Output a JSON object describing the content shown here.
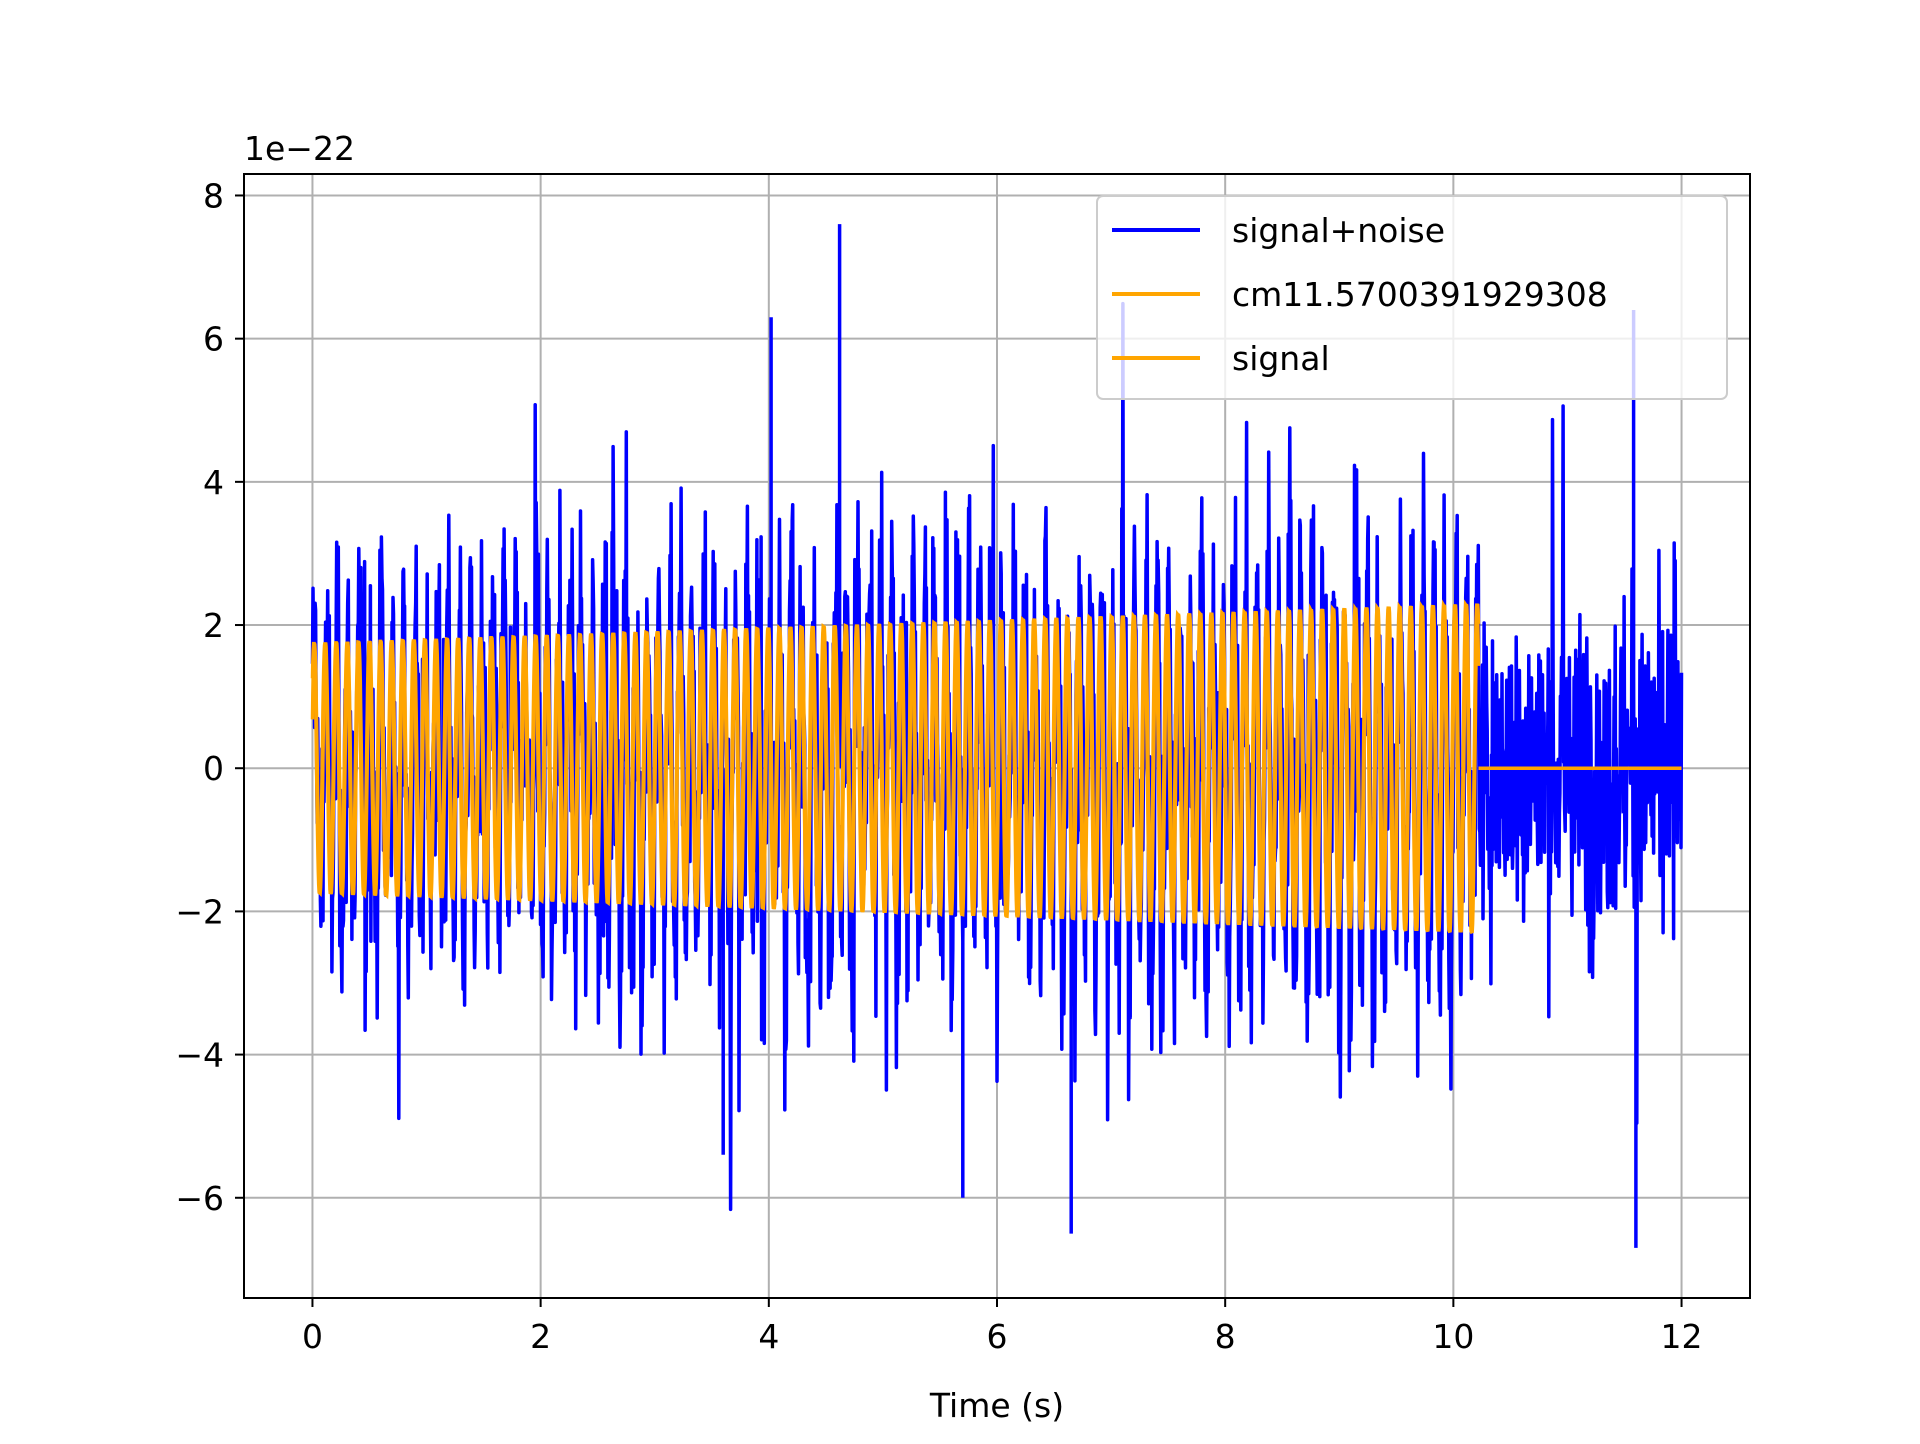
{
  "chart_data": {
    "type": "line",
    "title": "",
    "xlabel": "Time (s)",
    "ylabel": "",
    "y_offset_label": "1e−22",
    "xlim": [
      -0.6,
      12.6
    ],
    "ylim": [
      -7.4,
      8.3
    ],
    "x_ticks": [
      0,
      2,
      4,
      6,
      8,
      10,
      12
    ],
    "x_tick_labels": [
      "0",
      "2",
      "4",
      "6",
      "8",
      "10",
      "12"
    ],
    "y_ticks": [
      -6,
      -4,
      -2,
      0,
      2,
      4,
      6,
      8
    ],
    "y_tick_labels": [
      "−6",
      "−4",
      "−2",
      "0",
      "2",
      "4",
      "6",
      "8"
    ],
    "grid": true,
    "legend_position": "top-right",
    "series": [
      {
        "name": "signal+noise",
        "color": "#0000ff",
        "x_range": [
          0,
          12
        ],
        "peak_max": 7.6,
        "peak_min": -6.7,
        "typical_range": [
          -4,
          4
        ]
      },
      {
        "name": "cm11.5700391929308",
        "color": "#ffa500",
        "x_range": [
          0,
          10.22
        ],
        "amplitude_start": 1.75,
        "amplitude_end": 2.3,
        "zero_after": 10.22,
        "x_end": 12
      },
      {
        "name": "signal",
        "color": "#ffa500",
        "x_range": [
          0,
          10.22
        ],
        "amplitude_start": 1.75,
        "amplitude_end": 2.3,
        "zero_after": 10.22,
        "x_end": 12
      }
    ]
  }
}
